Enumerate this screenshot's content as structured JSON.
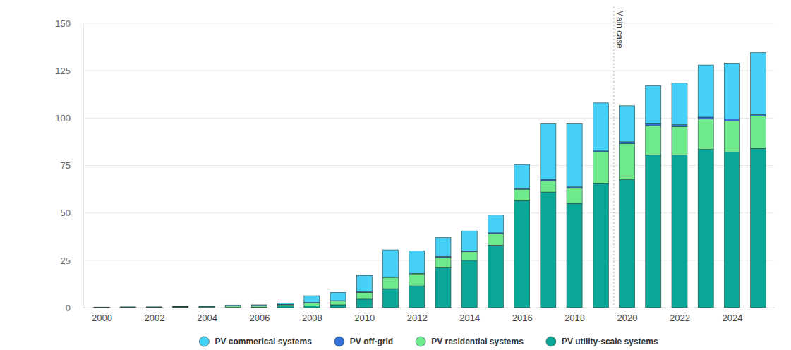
{
  "chart_data": {
    "type": "bar",
    "stacked": true,
    "grid": true,
    "legend": "bottom",
    "x": [
      2000,
      2001,
      2002,
      2003,
      2004,
      2005,
      2006,
      2007,
      2008,
      2009,
      2010,
      2011,
      2012,
      2013,
      2014,
      2015,
      2016,
      2017,
      2018,
      2019,
      2020,
      2021,
      2022,
      2023,
      2024,
      2025
    ],
    "xlim": [
      1999.3,
      2025.6
    ],
    "xticks": [
      2000,
      2002,
      2004,
      2006,
      2008,
      2010,
      2012,
      2014,
      2016,
      2018,
      2020,
      2022,
      2024
    ],
    "ylim": [
      0,
      150
    ],
    "yticks": [
      0,
      25,
      50,
      75,
      100,
      125,
      150
    ],
    "annotations": [
      {
        "text": "Main case",
        "x": 2019.5
      }
    ],
    "series": [
      {
        "name": "PV commerical systems",
        "color": "#46cff7",
        "values": [
          0.1,
          0.1,
          0.1,
          0.1,
          0.3,
          0.4,
          0.4,
          0.8,
          3.6,
          4.3,
          8.7,
          14.2,
          12,
          10,
          10.5,
          9.5,
          12.5,
          29.3,
          33.3,
          25.3,
          19,
          20,
          22,
          27.5,
          29.5,
          32.7
        ]
      },
      {
        "name": "PV off-grid",
        "color": "#3170d4",
        "values": [
          0.1,
          0.1,
          0.1,
          0.1,
          0.1,
          0.1,
          0.1,
          0.2,
          0.2,
          0.2,
          0.3,
          0.3,
          0.5,
          0.5,
          0.5,
          0.5,
          0.5,
          0.7,
          0.7,
          0.7,
          1,
          1,
          1,
          1,
          1,
          0.8
        ]
      },
      {
        "name": "PV residential systems",
        "color": "#6eea8d",
        "values": [
          0.1,
          0.2,
          0.2,
          0.3,
          0.5,
          0.8,
          0.8,
          0.5,
          1.5,
          2,
          3.5,
          6,
          6,
          5.5,
          4.5,
          6,
          6,
          6,
          8,
          16.5,
          19,
          15.5,
          15,
          16,
          16.5,
          17
        ]
      },
      {
        "name": "PV utility-scale systems",
        "color": "#0aa698",
        "values": [
          0,
          0,
          0,
          0,
          0.1,
          0.1,
          0.2,
          1,
          1,
          1.5,
          4.5,
          10,
          11.5,
          21,
          25,
          33,
          56.5,
          61,
          55,
          65.5,
          67.5,
          80.5,
          80.5,
          83.5,
          82,
          84
        ]
      }
    ]
  }
}
